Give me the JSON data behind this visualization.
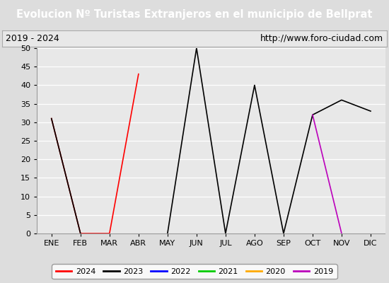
{
  "title": "Evolucion Nº Turistas Extranjeros en el municipio de Bellprat",
  "subtitle_left": "2019 - 2024",
  "subtitle_right": "http://www.foro-ciudad.com",
  "months": [
    "ENE",
    "FEB",
    "MAR",
    "ABR",
    "MAY",
    "JUN",
    "JUL",
    "AGO",
    "SEP",
    "OCT",
    "NOV",
    "DIC"
  ],
  "series": {
    "2024": {
      "color": "#ff0000",
      "data": [
        31,
        0,
        0,
        43,
        null,
        null,
        null,
        null,
        null,
        null,
        null,
        null
      ]
    },
    "2023": {
      "color": "#000000",
      "data": [
        31,
        0,
        null,
        null,
        0,
        50,
        0,
        40,
        0,
        32,
        36,
        33
      ]
    },
    "2022": {
      "color": "#0000ff",
      "data": [
        null,
        null,
        null,
        null,
        null,
        null,
        null,
        null,
        null,
        null,
        null,
        null
      ]
    },
    "2021": {
      "color": "#00cc00",
      "data": [
        null,
        null,
        null,
        null,
        null,
        null,
        null,
        null,
        null,
        null,
        null,
        null
      ]
    },
    "2020": {
      "color": "#ffaa00",
      "data": [
        null,
        null,
        null,
        null,
        null,
        null,
        null,
        null,
        null,
        null,
        null,
        null
      ]
    },
    "2019": {
      "color": "#bb00bb",
      "data": [
        null,
        null,
        null,
        null,
        null,
        null,
        null,
        null,
        null,
        32,
        0,
        null
      ]
    }
  },
  "ylim": [
    0,
    50
  ],
  "yticks": [
    0,
    5,
    10,
    15,
    20,
    25,
    30,
    35,
    40,
    45,
    50
  ],
  "title_bg_color": "#4488cc",
  "title_text_color": "#ffffff",
  "subtitle_bg_color": "#e8e8e8",
  "plot_bg_color": "#e8e8e8",
  "grid_color": "#ffffff",
  "left_strip_color": "#4488cc",
  "legend_order": [
    "2024",
    "2023",
    "2022",
    "2021",
    "2020",
    "2019"
  ],
  "fig_bg_color": "#e8e8e8"
}
